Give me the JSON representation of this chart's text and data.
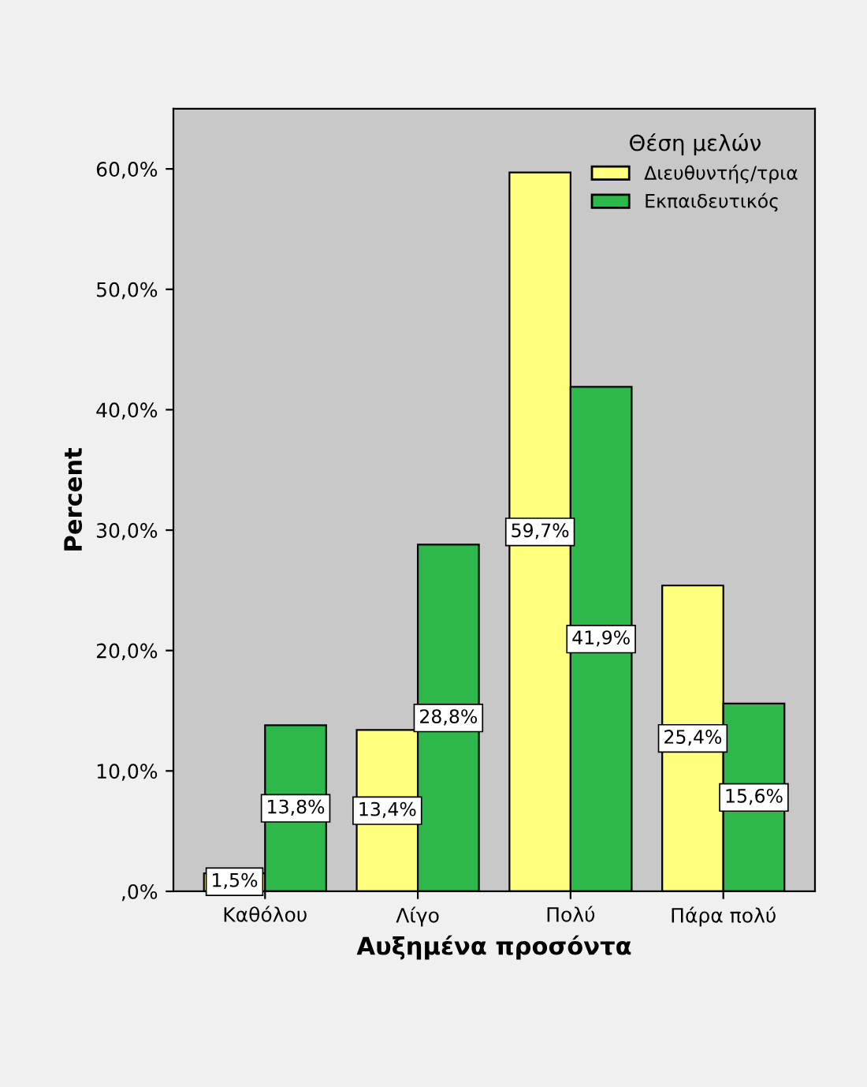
{
  "chart_data": {
    "type": "bar",
    "xlabel": "Αυξημένα προσόντα",
    "ylabel": "Percent",
    "legend_title": "Θέση μελών",
    "categories": [
      "Καθόλου",
      "Λίγο",
      "Πολύ",
      "Πάρα πολύ"
    ],
    "series": [
      {
        "name": "Διευθυντής/τρια",
        "color": "#ffff80",
        "values": [
          1.5,
          13.4,
          59.7,
          25.4
        ],
        "value_labels": [
          "1,5%",
          "13,4%",
          "59,7%",
          "25,4%"
        ]
      },
      {
        "name": "Εκπαιδευτικός",
        "color": "#2eb84c",
        "values": [
          13.8,
          28.8,
          41.9,
          15.6
        ],
        "value_labels": [
          "13,8%",
          "28,8%",
          "41,9%",
          "15,6%"
        ]
      }
    ],
    "ylim": [
      0,
      65
    ],
    "yticks": [
      {
        "value": 0,
        "label": ",0%"
      },
      {
        "value": 10,
        "label": "10,0%"
      },
      {
        "value": 20,
        "label": "20,0%"
      },
      {
        "value": 30,
        "label": "30,0%"
      },
      {
        "value": 40,
        "label": "40,0%"
      },
      {
        "value": 50,
        "label": "50,0%"
      },
      {
        "value": 60,
        "label": "60,0%"
      }
    ],
    "grid": false,
    "legend": "top right"
  }
}
